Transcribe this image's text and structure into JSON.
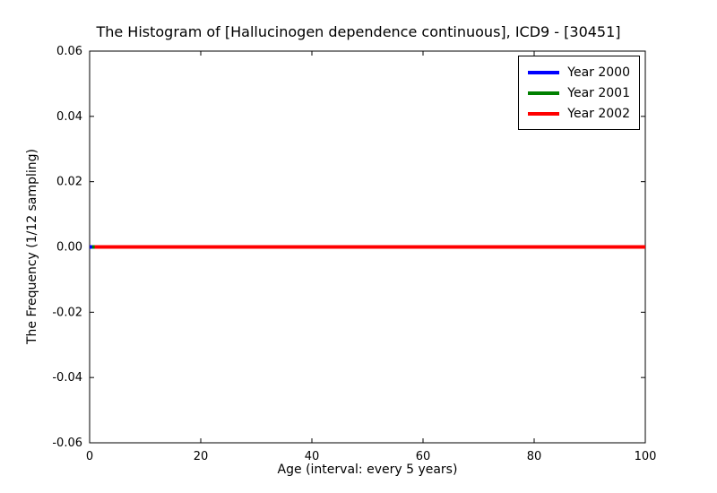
{
  "figure": {
    "background": "#ffffff",
    "axis_color": "#000000",
    "text_color": "#000000"
  },
  "chart_data": {
    "type": "line",
    "title": "The Histogram of [Hallucinogen dependence continuous], ICD9 - [30451]",
    "xlabel": "Age (interval: every 5 years)",
    "ylabel": "The Frequency (1/12 sampling)",
    "xlim": [
      0,
      100
    ],
    "ylim": [
      -0.06,
      0.06
    ],
    "x_ticks": [
      0,
      20,
      40,
      60,
      80,
      100
    ],
    "x_tick_labels": [
      "0",
      "20",
      "40",
      "60",
      "80",
      "100"
    ],
    "y_ticks": [
      -0.06,
      -0.04,
      -0.02,
      0,
      0.02,
      0.04,
      0.06
    ],
    "y_tick_labels": [
      "-0.06",
      "-0.04",
      "-0.02",
      "0.00",
      "0.02",
      "0.04",
      "0.06"
    ],
    "grid": false,
    "legend_position": "top-right",
    "series": [
      {
        "name": "Year 2000",
        "color": "#0000ff",
        "x": [
          0,
          100
        ],
        "values": [
          0,
          0
        ]
      },
      {
        "name": "Year 2001",
        "color": "#008000",
        "x": [
          0,
          100
        ],
        "values": [
          0,
          0
        ]
      },
      {
        "name": "Year 2002",
        "color": "#ff0000",
        "x": [
          0,
          100
        ],
        "values": [
          0,
          0
        ]
      }
    ]
  }
}
